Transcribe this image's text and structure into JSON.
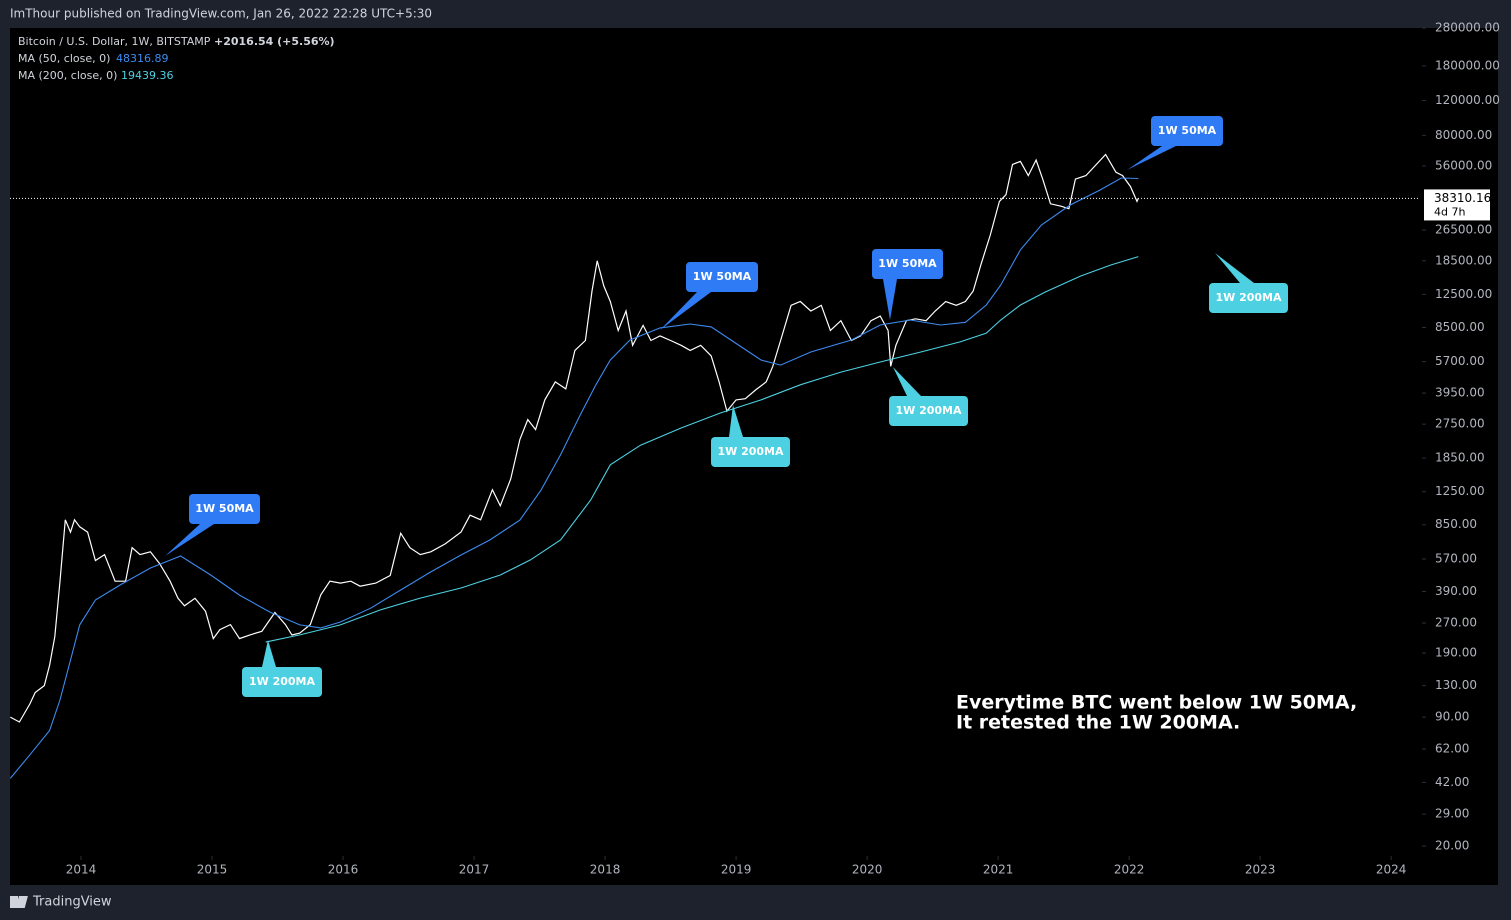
{
  "header": {
    "published": "ImThour published on TradingView.com, Jan 26, 2022 22:28 UTC+5:30"
  },
  "footer": {
    "brand": "TradingView"
  },
  "chart_data": {
    "type": "line",
    "symbol": "Bitcoin / U.S. Dollar, 1W, BITSTAMP",
    "change": "+2016.54 (+5.56%)",
    "log_scale": true,
    "grid": false,
    "countdown": "4d 7h",
    "series": [
      {
        "name": "Bitcoin / U.S. Dollar",
        "color": "#ffffff",
        "x": [
          2013.46,
          2013.53,
          2013.61,
          2013.65,
          2013.72,
          2013.76,
          2013.8,
          2013.84,
          2013.88,
          2013.92,
          2013.95,
          2013.99,
          2014.05,
          2014.11,
          2014.18,
          2014.26,
          2014.34,
          2014.39,
          2014.45,
          2014.53,
          2014.6,
          2014.68,
          2014.74,
          2014.79,
          2014.87,
          2014.95,
          2015.01,
          2015.06,
          2015.14,
          2015.21,
          2015.29,
          2015.38,
          2015.48,
          2015.56,
          2015.61,
          2015.67,
          2015.75,
          2015.83,
          2015.9,
          2015.98,
          2016.06,
          2016.13,
          2016.25,
          2016.36,
          2016.44,
          2016.51,
          2016.59,
          2016.67,
          2016.78,
          2016.9,
          2016.97,
          2017.05,
          2017.14,
          2017.2,
          2017.28,
          2017.35,
          2017.41,
          2017.47,
          2017.54,
          2017.62,
          2017.7,
          2017.77,
          2017.85,
          2017.9,
          2017.94,
          2017.99,
          2018.04,
          2018.1,
          2018.16,
          2018.21,
          2018.29,
          2018.35,
          2018.42,
          2018.5,
          2018.58,
          2018.65,
          2018.73,
          2018.81,
          2018.87,
          2018.93,
          2019.0,
          2019.07,
          2019.15,
          2019.23,
          2019.28,
          2019.34,
          2019.42,
          2019.49,
          2019.57,
          2019.65,
          2019.72,
          2019.8,
          2019.88,
          2019.95,
          2020.03,
          2020.1,
          2020.16,
          2020.18,
          2020.22,
          2020.3,
          2020.37,
          2020.45,
          2020.52,
          2020.6,
          2020.68,
          2020.75,
          2020.81,
          2020.87,
          2020.94,
          2021.01,
          2021.06,
          2021.11,
          2021.17,
          2021.23,
          2021.29,
          2021.34,
          2021.4,
          2021.48,
          2021.54,
          2021.59,
          2021.67,
          2021.75,
          2021.82,
          2021.9,
          2021.95,
          2022.01,
          2022.06,
          2022.07
        ],
        "values": [
          90,
          85,
          105,
          120,
          130,
          165,
          230,
          440,
          900,
          780,
          900,
          830,
          780,
          560,
          600,
          440,
          440,
          650,
          600,
          620,
          540,
          440,
          360,
          330,
          360,
          310,
          225,
          250,
          265,
          225,
          235,
          245,
          305,
          265,
          235,
          240,
          265,
          375,
          440,
          430,
          440,
          415,
          430,
          470,
          770,
          650,
          600,
          620,
          680,
          780,
          950,
          900,
          1280,
          1060,
          1450,
          2300,
          2900,
          2580,
          3650,
          4500,
          4150,
          6500,
          7300,
          13000,
          18500,
          13800,
          11500,
          8200,
          10300,
          6900,
          8700,
          7300,
          7700,
          7300,
          6900,
          6500,
          6900,
          6100,
          4500,
          3200,
          3650,
          3700,
          4100,
          4500,
          5400,
          7300,
          11000,
          11500,
          10300,
          11000,
          8200,
          9200,
          7300,
          7700,
          9200,
          9700,
          8200,
          5400,
          6900,
          9200,
          9400,
          9200,
          10300,
          11500,
          11000,
          11500,
          13000,
          17800,
          25000,
          37000,
          40000,
          57000,
          59000,
          50000,
          60000,
          48000,
          36000,
          35000,
          34000,
          48000,
          50000,
          57000,
          64000,
          52000,
          50000,
          44000,
          37000,
          38310.16
        ]
      },
      {
        "name": "MA (50, close, 0)",
        "color": "#3d8bf0",
        "x": [
          2013.46,
          2013.61,
          2013.76,
          2013.84,
          2013.92,
          2013.99,
          2014.11,
          2014.3,
          2014.53,
          2014.76,
          2014.99,
          2015.21,
          2015.44,
          2015.67,
          2015.83,
          2015.98,
          2016.21,
          2016.44,
          2016.67,
          2016.9,
          2017.12,
          2017.35,
          2017.51,
          2017.66,
          2017.81,
          2017.93,
          2018.04,
          2018.19,
          2018.42,
          2018.65,
          2018.81,
          2018.96,
          2019.19,
          2019.34,
          2019.57,
          2019.88,
          2020.1,
          2020.33,
          2020.56,
          2020.75,
          2020.91,
          2021.02,
          2021.17,
          2021.33,
          2021.55,
          2021.78,
          2021.94,
          2022.07
        ],
        "values": [
          44,
          58,
          77,
          110,
          175,
          264,
          353,
          421,
          513,
          590,
          473,
          374,
          307,
          264,
          255,
          273,
          321,
          397,
          490,
          597,
          711,
          897,
          1270,
          1920,
          3060,
          4350,
          5810,
          7340,
          8450,
          8850,
          8550,
          7340,
          5810,
          5480,
          6380,
          7340,
          8750,
          9270,
          8750,
          9030,
          11040,
          13930,
          21000,
          28100,
          35500,
          42300,
          48600,
          48316.89
        ]
      },
      {
        "name": "MA (200, close, 0)",
        "color": "#4dd0e1",
        "x": [
          2015.41,
          2015.67,
          2015.98,
          2016.28,
          2016.59,
          2016.9,
          2017.2,
          2017.43,
          2017.66,
          2017.89,
          2018.04,
          2018.27,
          2018.58,
          2018.88,
          2019.19,
          2019.49,
          2019.8,
          2020.1,
          2020.41,
          2020.71,
          2020.91,
          2021.02,
          2021.17,
          2021.36,
          2021.63,
          2021.86,
          2022.07
        ],
        "values": [
          216,
          235,
          264,
          314,
          361,
          406,
          473,
          564,
          711,
          1135,
          1710,
          2150,
          2630,
          3130,
          3650,
          4350,
          5050,
          5680,
          6380,
          7180,
          7960,
          9270,
          11040,
          12850,
          15490,
          17620,
          19439.36
        ]
      }
    ],
    "xlim": [
      2013.458,
      2024.22
    ],
    "xticks": [
      2014,
      2015,
      2016,
      2017,
      2018,
      2019,
      2020,
      2021,
      2022,
      2023,
      2024
    ],
    "ylim": [
      20,
      280000
    ],
    "yticks": [
      {
        "value": 280000,
        "label": "280000.00"
      },
      {
        "value": 180000,
        "label": "180000.00"
      },
      {
        "value": 120000,
        "label": "120000.00"
      },
      {
        "value": 80000,
        "label": "80000.00"
      },
      {
        "value": 56000,
        "label": "56000.00"
      },
      {
        "value": 26500,
        "label": "26500.00"
      },
      {
        "value": 18500,
        "label": "18500.00"
      },
      {
        "value": 12500,
        "label": "12500.00"
      },
      {
        "value": 8500,
        "label": "8500.00"
      },
      {
        "value": 5700,
        "label": "5700.00"
      },
      {
        "value": 3950,
        "label": "3950.00"
      },
      {
        "value": 2750,
        "label": "2750.00"
      },
      {
        "value": 1850,
        "label": "1850.00"
      },
      {
        "value": 1250,
        "label": "1250.00"
      },
      {
        "value": 850,
        "label": "850.00"
      },
      {
        "value": 570,
        "label": "570.00"
      },
      {
        "value": 390,
        "label": "390.00"
      },
      {
        "value": 270,
        "label": "270.00"
      },
      {
        "value": 190,
        "label": "190.00"
      },
      {
        "value": 130,
        "label": "130.00"
      },
      {
        "value": 90,
        "label": "90.00"
      },
      {
        "value": 62,
        "label": "62.00"
      },
      {
        "value": 42,
        "label": "42.00"
      },
      {
        "value": 29,
        "label": "29.00"
      },
      {
        "value": 20,
        "label": "20.00"
      }
    ],
    "annotations": [
      {
        "text": "1W 50MA",
        "color": "#2f7bf5"
      },
      {
        "text": "1W 200MA",
        "color": "#4dd0e1"
      },
      {
        "text": "1W 50MA",
        "color": "#2f7bf5"
      },
      {
        "text": "1W 200MA",
        "color": "#4dd0e1"
      },
      {
        "text": "1W 50MA",
        "color": "#2f7bf5"
      },
      {
        "text": "1W 200MA",
        "color": "#4dd0e1"
      },
      {
        "text": "1W 50MA",
        "color": "#2f7bf5"
      },
      {
        "text": "1W 200MA",
        "color": "#4dd0e1"
      }
    ],
    "note": [
      "Everytime BTC went below 1W 50MA,",
      "It retested the 1W 200MA."
    ]
  }
}
